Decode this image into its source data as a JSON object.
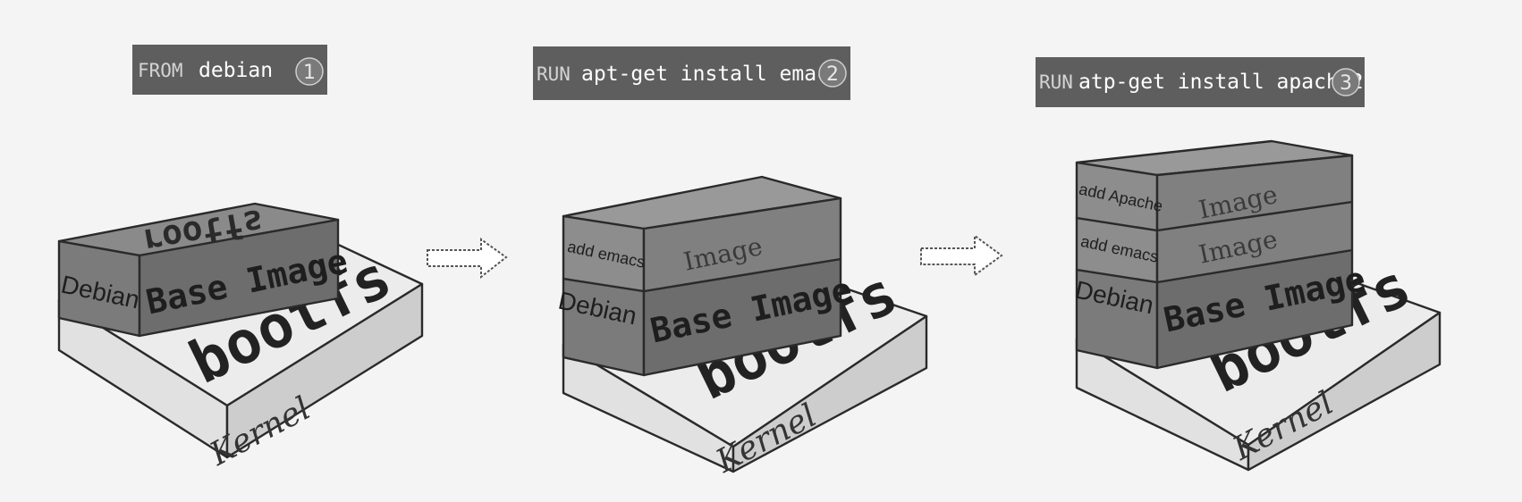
{
  "steps": [
    {
      "keyword": "FROM",
      "command": "debian",
      "number": "1"
    },
    {
      "keyword": "RUN",
      "command": "apt-get install emacs",
      "number": "2"
    },
    {
      "keyword": "RUN",
      "command": "atp-get install apache2",
      "number": "3"
    }
  ],
  "labels": {
    "kernel": "Kernel",
    "bootfs": "bootfs",
    "rootfs": "rootfs",
    "base_image": "Base Image",
    "debian": "Debian",
    "image": "Image",
    "add_emacs": "add emacs",
    "add_apache": "add Apache"
  }
}
